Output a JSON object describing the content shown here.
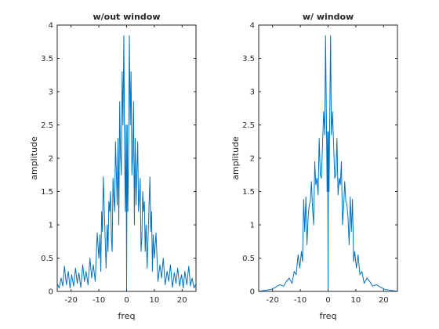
{
  "chart_data": [
    {
      "type": "line",
      "title": "w/out window",
      "xlabel": "freq",
      "ylabel": "amplitude",
      "xlim": [
        -25,
        25
      ],
      "ylim": [
        0,
        4
      ],
      "xticks": [
        -20,
        -10,
        0,
        10,
        20
      ],
      "yticks": [
        0,
        0.5,
        1,
        1.5,
        2,
        2.5,
        3,
        3.5,
        4
      ],
      "line_color": "#0072BD",
      "series": [
        {
          "x": [
            -25,
            -24.3,
            -23.6,
            -23,
            -22.4,
            -21.7,
            -21,
            -20.4,
            -19.8,
            -19.1,
            -18.4,
            -17.8,
            -17.2,
            -16.5,
            -15.8,
            -15.2,
            -14.6,
            -13.9,
            -13.2,
            -12.6,
            -12,
            -11.3,
            -10.6,
            -10,
            -9.6,
            -9.3,
            -9,
            -8.7,
            -8.4,
            -8.1,
            -7.8,
            -7.4,
            -7,
            -6.7,
            -6.4,
            -6.1,
            -5.8,
            -5.5,
            -5.2,
            -4.9,
            -4.6,
            -4.3,
            -4,
            -3.7,
            -3.4,
            -3.1,
            -2.8,
            -2.5,
            -2.2,
            -1.9,
            -1.6,
            -1.3,
            -1,
            -0.7,
            -0.45,
            -0.2,
            0,
            0.2,
            0.45,
            0.7,
            1,
            1.3,
            1.6,
            1.9,
            2.2,
            2.5,
            2.8,
            3.1,
            3.4,
            3.7,
            4,
            4.3,
            4.6,
            4.9,
            5.2,
            5.5,
            5.8,
            6.1,
            6.4,
            6.7,
            7,
            7.4,
            7.8,
            8.1,
            8.4,
            8.7,
            9,
            9.3,
            9.6,
            10,
            10.6,
            11.3,
            12,
            12.6,
            13.2,
            13.9,
            14.6,
            15.2,
            15.8,
            16.5,
            17.2,
            17.8,
            18.4,
            19.1,
            19.8,
            20.4,
            21,
            21.7,
            22.4,
            23,
            23.6,
            24.3,
            25
          ],
          "y": [
            0.12,
            0.05,
            0.2,
            0.08,
            0.38,
            0.1,
            0.3,
            0.05,
            0.25,
            0.08,
            0.35,
            0.12,
            0.28,
            0.06,
            0.4,
            0.15,
            0.3,
            0.1,
            0.5,
            0.2,
            0.4,
            0.15,
            0.88,
            0.5,
            0.85,
            0.3,
            1.2,
            0.9,
            1.72,
            1.3,
            0.9,
            0.35,
            1.0,
            0.6,
            1.35,
            1.2,
            1.5,
            0.8,
            0.6,
            1.7,
            1.4,
            1.2,
            2.25,
            1.8,
            1.3,
            2.3,
            1.0,
            2.85,
            2.05,
            1.75,
            3.3,
            2.5,
            3.84,
            2.0,
            1.2,
            2.5,
            0.0,
            2.5,
            1.2,
            2.0,
            3.84,
            2.5,
            3.3,
            1.75,
            2.05,
            2.85,
            1.0,
            2.3,
            1.3,
            1.8,
            2.25,
            1.2,
            1.4,
            1.7,
            0.6,
            0.8,
            1.5,
            1.2,
            1.35,
            0.6,
            1.0,
            0.35,
            0.9,
            1.3,
            1.72,
            0.9,
            1.2,
            0.3,
            0.85,
            0.5,
            0.88,
            0.15,
            0.4,
            0.2,
            0.5,
            0.1,
            0.3,
            0.15,
            0.4,
            0.06,
            0.28,
            0.12,
            0.35,
            0.08,
            0.25,
            0.05,
            0.3,
            0.1,
            0.38,
            0.08,
            0.2,
            0.05,
            0.12
          ]
        }
      ]
    },
    {
      "type": "line",
      "title": "w/ window",
      "xlabel": "freq",
      "ylabel": "amplitude",
      "xlim": [
        -25,
        25
      ],
      "ylim": [
        0,
        4
      ],
      "xticks": [
        -20,
        -10,
        0,
        10,
        20
      ],
      "yticks": [
        0,
        0.5,
        1,
        1.5,
        2,
        2.5,
        3,
        3.5,
        4
      ],
      "line_color": "#0072BD",
      "series": [
        {
          "x": [
            -25,
            -23.5,
            -22,
            -20.5,
            -19,
            -17.5,
            -16,
            -15,
            -14,
            -13,
            -12.2,
            -11.5,
            -10.8,
            -10.2,
            -9.6,
            -9.2,
            -8.8,
            -8.4,
            -8,
            -7.6,
            -7.2,
            -6.8,
            -6.4,
            -6,
            -5.6,
            -5.2,
            -4.8,
            -4.4,
            -4,
            -3.6,
            -3.2,
            -2.8,
            -2.4,
            -2,
            -1.6,
            -1.2,
            -0.9,
            -0.6,
            -0.35,
            -0.15,
            0,
            0.15,
            0.35,
            0.6,
            0.9,
            1.2,
            1.6,
            2,
            2.4,
            2.8,
            3.2,
            3.6,
            4,
            4.4,
            4.8,
            5.2,
            5.6,
            6,
            6.4,
            6.8,
            7.2,
            7.6,
            8,
            8.4,
            8.8,
            9.2,
            9.6,
            10.2,
            10.8,
            11.5,
            12.2,
            13,
            14,
            15,
            16,
            17.5,
            19,
            20.5,
            22,
            23.5,
            25
          ],
          "y": [
            0.0,
            0.01,
            0.02,
            0.03,
            0.06,
            0.1,
            0.08,
            0.15,
            0.2,
            0.12,
            0.3,
            0.25,
            0.55,
            0.35,
            0.6,
            0.45,
            1.38,
            0.9,
            1.42,
            0.7,
            1.1,
            1.3,
            1.35,
            1.65,
            1.25,
            1.0,
            1.95,
            1.6,
            1.7,
            1.45,
            2.3,
            1.75,
            1.7,
            2.2,
            2.7,
            2.35,
            3.84,
            2.6,
            1.5,
            2.4,
            0.0,
            2.4,
            1.5,
            2.6,
            3.84,
            2.35,
            2.7,
            2.2,
            1.7,
            1.75,
            2.3,
            1.45,
            1.7,
            1.6,
            1.95,
            1.0,
            1.25,
            1.65,
            1.35,
            1.3,
            1.1,
            0.7,
            1.42,
            0.9,
            1.38,
            0.45,
            0.6,
            0.35,
            0.55,
            0.25,
            0.3,
            0.12,
            0.2,
            0.15,
            0.08,
            0.1,
            0.06,
            0.03,
            0.02,
            0.01,
            0.0
          ]
        }
      ]
    }
  ]
}
